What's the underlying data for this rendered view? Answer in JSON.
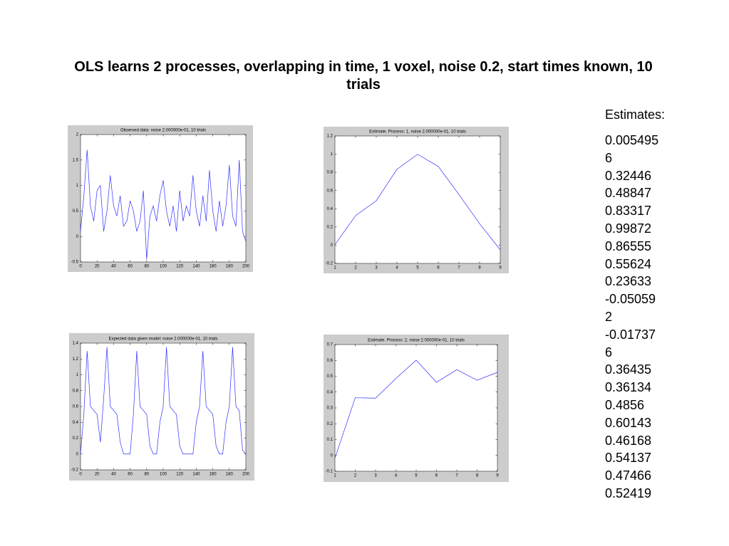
{
  "title": "OLS learns 2 processes, overlapping in time, 1 voxel, noise 0.2, start times known, 10 trials",
  "chart_data": [
    {
      "type": "line",
      "title": "Observed data: noise 2.000000e-01, 10 trials",
      "color": "#3030ff",
      "x": [
        0,
        4,
        8,
        12,
        16,
        20,
        24,
        28,
        32,
        36,
        40,
        44,
        48,
        52,
        56,
        60,
        64,
        68,
        72,
        76,
        80,
        84,
        88,
        92,
        96,
        100,
        104,
        108,
        112,
        116,
        120,
        124,
        128,
        132,
        136,
        140,
        144,
        148,
        152,
        156,
        160,
        164,
        168,
        172,
        176,
        180,
        184,
        188,
        192,
        196,
        200
      ],
      "values": [
        0.1,
        0.8,
        1.7,
        0.6,
        0.3,
        0.9,
        1.0,
        0.1,
        0.5,
        1.2,
        0.6,
        0.4,
        0.8,
        0.2,
        0.3,
        0.7,
        0.5,
        0.1,
        0.3,
        0.9,
        -0.45,
        0.4,
        0.6,
        0.3,
        0.8,
        1.1,
        0.5,
        0.2,
        0.6,
        0.1,
        0.9,
        0.3,
        0.6,
        0.4,
        1.2,
        0.5,
        0.2,
        0.8,
        0.3,
        1.3,
        0.5,
        0.1,
        0.7,
        0.2,
        0.6,
        1.4,
        0.4,
        0.2,
        1.5,
        0.1,
        -0.1
      ],
      "xlim": [
        0,
        200
      ],
      "xticks": [
        0,
        20,
        40,
        60,
        80,
        100,
        120,
        140,
        160,
        180,
        200
      ],
      "ylim": [
        -0.5,
        2
      ],
      "yticks": [
        -0.5,
        0,
        0.5,
        1,
        1.5,
        2
      ]
    },
    {
      "type": "line",
      "title": "Estimate. Process: 1, noise 2.000000e-01, 10 trials",
      "color": "#3030ff",
      "x": [
        1,
        2,
        3,
        4,
        5,
        6,
        7,
        8,
        9
      ],
      "values": [
        0.0054956,
        0.32446,
        0.48847,
        0.83317,
        0.99872,
        0.86555,
        0.55624,
        0.23633,
        -0.050592
      ],
      "xlim": [
        1,
        9
      ],
      "xticks": [
        1,
        2,
        3,
        4,
        5,
        6,
        7,
        8,
        9
      ],
      "ylim": [
        -0.2,
        1.2
      ],
      "yticks": [
        -0.2,
        0,
        0.2,
        0.4,
        0.6,
        0.8,
        1,
        1.2
      ]
    },
    {
      "type": "line",
      "title": "Expected data given model: noise 2.000000e-01, 10 trials",
      "color": "#3030ff",
      "x": [
        0,
        4,
        8,
        12,
        16,
        20,
        24,
        28,
        32,
        36,
        40,
        44,
        48,
        52,
        56,
        60,
        64,
        68,
        72,
        76,
        80,
        84,
        88,
        92,
        96,
        100,
        104,
        108,
        112,
        116,
        120,
        124,
        128,
        132,
        136,
        140,
        144,
        148,
        152,
        156,
        160,
        164,
        168,
        172,
        176,
        180,
        184,
        188,
        192,
        196,
        200
      ],
      "values": [
        0,
        0.5,
        1.3,
        0.6,
        0.55,
        0.5,
        0.15,
        0.7,
        1.35,
        0.6,
        0.55,
        0.5,
        0.15,
        0,
        0,
        0,
        0.5,
        1.3,
        0.6,
        0.55,
        0.5,
        0.1,
        0,
        0,
        0.4,
        0.6,
        1.35,
        0.6,
        0.55,
        0.5,
        0.1,
        0,
        0,
        0,
        0,
        0.4,
        0.6,
        1.3,
        0.6,
        0.55,
        0.5,
        0.1,
        0,
        0,
        0.4,
        0.6,
        1.35,
        0.6,
        0.55,
        0.05,
        0
      ],
      "xlim": [
        0,
        200
      ],
      "xticks": [
        0,
        20,
        40,
        60,
        80,
        100,
        120,
        140,
        160,
        180,
        200
      ],
      "ylim": [
        -0.2,
        1.4
      ],
      "yticks": [
        -0.2,
        0,
        0.2,
        0.4,
        0.6,
        0.8,
        1,
        1.2,
        1.4
      ]
    },
    {
      "type": "line",
      "title": "Estimate. Process: 2, noise 2.000000e-01, 10 trials",
      "color": "#3030ff",
      "x": [
        1,
        2,
        3,
        4,
        5,
        6,
        7,
        8,
        9
      ],
      "values": [
        -0.017376,
        0.36435,
        0.36134,
        0.4856,
        0.60143,
        0.46168,
        0.54137,
        0.47466,
        0.52419
      ],
      "xlim": [
        1,
        9
      ],
      "xticks": [
        1,
        2,
        3,
        4,
        5,
        6,
        7,
        8,
        9
      ],
      "ylim": [
        -0.1,
        0.7
      ],
      "yticks": [
        -0.1,
        0,
        0.1,
        0.2,
        0.3,
        0.4,
        0.5,
        0.6,
        0.7
      ]
    }
  ],
  "estimates": {
    "label": "Estimates:",
    "values": [
      "0.0054956",
      "0.32446",
      "0.48847",
      "0.83317",
      "0.99872",
      "0.86555",
      "0.55624",
      "0.23633",
      "-0.050592",
      "-0.017376",
      "0.36435",
      "0.36134",
      "0.4856",
      "0.60143",
      "0.46168",
      "0.54137",
      "0.47466",
      "0.52419"
    ]
  }
}
